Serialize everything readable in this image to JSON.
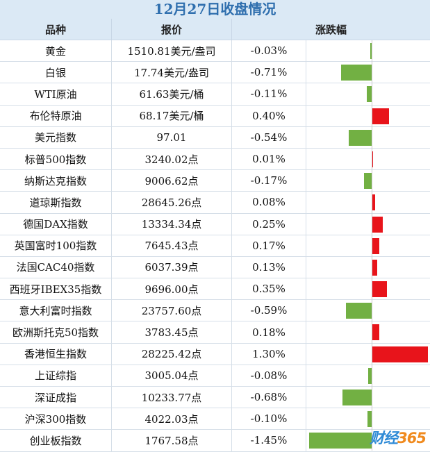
{
  "title": "12月27日收盘情况",
  "headers": {
    "name": "品种",
    "price": "报价",
    "change": "涨跌幅"
  },
  "rows": [
    {
      "name": "黄金",
      "price": "1510.81美元/盎司",
      "change": "-0.03%",
      "value": -0.03
    },
    {
      "name": "白银",
      "price": "17.74美元/盎司",
      "change": "-0.71%",
      "value": -0.71
    },
    {
      "name": "WTI原油",
      "price": "61.63美元/桶",
      "change": "-0.11%",
      "value": -0.11
    },
    {
      "name": "布伦特原油",
      "price": "68.17美元/桶",
      "change": "0.40%",
      "value": 0.4
    },
    {
      "name": "美元指数",
      "price": "97.01",
      "change": "-0.54%",
      "value": -0.54
    },
    {
      "name": "标普500指数",
      "price": "3240.02点",
      "change": "0.01%",
      "value": 0.01
    },
    {
      "name": "纳斯达克指数",
      "price": "9006.62点",
      "change": "-0.17%",
      "value": -0.17
    },
    {
      "name": "道琼斯指数",
      "price": "28645.26点",
      "change": "0.08%",
      "value": 0.08
    },
    {
      "name": "德国DAX指数",
      "price": "13334.34点",
      "change": "0.25%",
      "value": 0.25
    },
    {
      "name": "英国富时100指数",
      "price": "7645.43点",
      "change": "0.17%",
      "value": 0.17
    },
    {
      "name": "法国CAC40指数",
      "price": "6037.39点",
      "change": "0.13%",
      "value": 0.13
    },
    {
      "name": "西班牙IBEX35指数",
      "price": "9696.00点",
      "change": "0.35%",
      "value": 0.35
    },
    {
      "name": "意大利富时指数",
      "price": "23757.60点",
      "change": "-0.59%",
      "value": -0.59
    },
    {
      "name": "欧洲斯托克50指数",
      "price": "3783.45点",
      "change": "0.18%",
      "value": 0.18
    },
    {
      "name": "香港恒生指数",
      "price": "28225.42点",
      "change": "1.30%",
      "value": 1.3
    },
    {
      "name": "上证综指",
      "price": "3005.04点",
      "change": "-0.08%",
      "value": -0.08
    },
    {
      "name": "深证成指",
      "price": "10233.77点",
      "change": "-0.68%",
      "value": -0.68
    },
    {
      "name": "沪深300指数",
      "price": "4022.03点",
      "change": "-0.10%",
      "value": -0.1
    },
    {
      "name": "创业板指数",
      "price": "1767.58点",
      "change": "-1.45%",
      "value": -1.45
    }
  ],
  "colors": {
    "negative": "#72b043",
    "positive": "#e8141b",
    "header_bg": "#dbe9f5",
    "title_text": "#2f6fae"
  },
  "watermark": {
    "part1": "财经",
    "part2": "365"
  }
}
